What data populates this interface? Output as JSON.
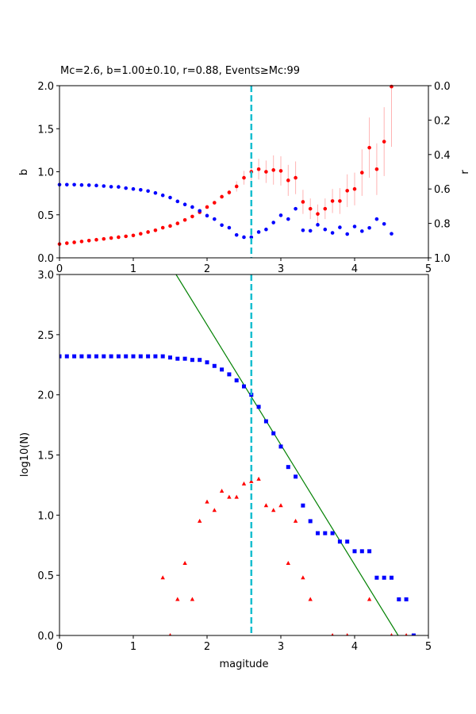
{
  "chart_data": [
    {
      "type": "scatter",
      "title": "Mc=2.6, b=1.00±0.10, r=0.88, Events≥Mc:99",
      "xlabel": "",
      "ylabel": "b",
      "ylabel_right": "r",
      "xlim": [
        0,
        5
      ],
      "ylim": [
        0,
        2.0
      ],
      "ylim_right": [
        1.0,
        0.0
      ],
      "xticks": [
        "0",
        "1",
        "2",
        "3",
        "4",
        "5"
      ],
      "yticks": [
        "0.0",
        "0.5",
        "1.0",
        "1.5",
        "2.0"
      ],
      "yticks_right": [
        "0.0",
        "0.2",
        "0.4",
        "0.6",
        "0.8",
        "1.0"
      ],
      "mc_line": 2.6,
      "series": [
        {
          "axis": "left",
          "color": "#ff0000",
          "errorbar_color": "#ffb3b3",
          "x": [
            0.0,
            0.1,
            0.2,
            0.3,
            0.4,
            0.5,
            0.6,
            0.7,
            0.8,
            0.9,
            1.0,
            1.1,
            1.2,
            1.3,
            1.4,
            1.5,
            1.6,
            1.7,
            1.8,
            1.9,
            2.0,
            2.1,
            2.2,
            2.3,
            2.4,
            2.5,
            2.6,
            2.7,
            2.8,
            2.9,
            3.0,
            3.1,
            3.2,
            3.3,
            3.4,
            3.5,
            3.6,
            3.7,
            3.8,
            3.9,
            4.0,
            4.1,
            4.2,
            4.3,
            4.4,
            4.5
          ],
          "y": [
            0.16,
            0.17,
            0.18,
            0.19,
            0.2,
            0.21,
            0.22,
            0.23,
            0.24,
            0.25,
            0.26,
            0.28,
            0.3,
            0.32,
            0.35,
            0.37,
            0.4,
            0.44,
            0.48,
            0.53,
            0.59,
            0.64,
            0.71,
            0.76,
            0.83,
            0.93,
            1.0,
            1.03,
            1.0,
            1.02,
            1.01,
            0.9,
            0.93,
            0.65,
            0.57,
            0.51,
            0.57,
            0.66,
            0.66,
            0.78,
            0.8,
            0.99,
            1.28,
            1.03,
            1.35,
            1.99
          ],
          "err": [
            0,
            0,
            0,
            0,
            0,
            0,
            0,
            0,
            0,
            0,
            0,
            0,
            0,
            0,
            0,
            0,
            0,
            0,
            0,
            0,
            0,
            0,
            0,
            0.03,
            0.06,
            0.08,
            0.1,
            0.12,
            0.13,
            0.17,
            0.17,
            0.18,
            0.19,
            0.14,
            0.12,
            0.11,
            0.12,
            0.14,
            0.15,
            0.19,
            0.19,
            0.27,
            0.35,
            0.3,
            0.4,
            0.7
          ]
        },
        {
          "axis": "right",
          "color": "#0000ff",
          "x": [
            0.0,
            0.1,
            0.2,
            0.3,
            0.4,
            0.5,
            0.6,
            0.7,
            0.8,
            0.9,
            1.0,
            1.1,
            1.2,
            1.3,
            1.4,
            1.5,
            1.6,
            1.7,
            1.8,
            1.9,
            2.0,
            2.1,
            2.2,
            2.3,
            2.4,
            2.5,
            2.6,
            2.7,
            2.8,
            2.9,
            3.0,
            3.1,
            3.2,
            3.3,
            3.4,
            3.5,
            3.6,
            3.7,
            3.8,
            3.9,
            4.0,
            4.1,
            4.2,
            4.3,
            4.4,
            4.5
          ],
          "y": [
            0.575,
            0.575,
            0.575,
            0.577,
            0.578,
            0.58,
            0.583,
            0.587,
            0.588,
            0.595,
            0.6,
            0.605,
            0.612,
            0.623,
            0.637,
            0.65,
            0.672,
            0.69,
            0.705,
            0.727,
            0.755,
            0.775,
            0.81,
            0.825,
            0.867,
            0.88,
            0.88,
            0.85,
            0.835,
            0.795,
            0.753,
            0.775,
            0.715,
            0.84,
            0.843,
            0.808,
            0.835,
            0.855,
            0.823,
            0.862,
            0.818,
            0.845,
            0.826,
            0.775,
            0.803,
            0.86
          ]
        }
      ]
    },
    {
      "type": "scatter",
      "title": "",
      "xlabel": "magitude",
      "ylabel": "log10(N)",
      "xlim": [
        0,
        5
      ],
      "ylim": [
        0,
        3.0
      ],
      "xticks": [
        "0",
        "1",
        "2",
        "3",
        "4",
        "5"
      ],
      "yticks": [
        "0.0",
        "0.5",
        "1.0",
        "1.5",
        "2.0",
        "2.5",
        "3.0"
      ],
      "mc_line": 2.6,
      "fit_line": {
        "color": "#008000",
        "x": [
          1.58,
          4.59
        ],
        "y": [
          3.0,
          0.0
        ]
      },
      "series": [
        {
          "marker": "square",
          "color": "#0000ff",
          "x": [
            0.0,
            0.1,
            0.2,
            0.3,
            0.4,
            0.5,
            0.6,
            0.7,
            0.8,
            0.9,
            1.0,
            1.1,
            1.2,
            1.3,
            1.4,
            1.5,
            1.6,
            1.7,
            1.8,
            1.9,
            2.0,
            2.1,
            2.2,
            2.3,
            2.4,
            2.5,
            2.6,
            2.7,
            2.8,
            2.9,
            3.0,
            3.1,
            3.2,
            3.3,
            3.4,
            3.5,
            3.6,
            3.7,
            3.8,
            3.9,
            4.0,
            4.1,
            4.2,
            4.3,
            4.4,
            4.5,
            4.6,
            4.7,
            4.8
          ],
          "y": [
            2.32,
            2.32,
            2.32,
            2.32,
            2.32,
            2.32,
            2.32,
            2.32,
            2.32,
            2.32,
            2.32,
            2.32,
            2.32,
            2.32,
            2.32,
            2.31,
            2.3,
            2.3,
            2.29,
            2.29,
            2.27,
            2.24,
            2.21,
            2.17,
            2.12,
            2.07,
            2.0,
            1.9,
            1.78,
            1.68,
            1.57,
            1.4,
            1.32,
            1.08,
            0.95,
            0.85,
            0.85,
            0.85,
            0.78,
            0.78,
            0.7,
            0.7,
            0.7,
            0.48,
            0.48,
            0.48,
            0.3,
            0.3,
            0.0
          ]
        },
        {
          "marker": "triangle",
          "color": "#ff0000",
          "x": [
            1.4,
            1.5,
            1.6,
            1.7,
            1.8,
            1.9,
            2.0,
            2.1,
            2.2,
            2.3,
            2.4,
            2.5,
            2.6,
            2.7,
            2.8,
            2.9,
            3.0,
            3.1,
            3.2,
            3.3,
            3.4,
            3.7,
            3.9,
            4.2,
            4.5,
            4.7
          ],
          "y": [
            0.48,
            0.0,
            0.3,
            0.6,
            0.3,
            0.95,
            1.11,
            1.04,
            1.2,
            1.15,
            1.15,
            1.26,
            1.28,
            1.3,
            1.08,
            1.04,
            1.08,
            0.6,
            0.95,
            0.48,
            0.3,
            0.0,
            0.0,
            0.3,
            0.0,
            0.0
          ]
        }
      ]
    }
  ]
}
